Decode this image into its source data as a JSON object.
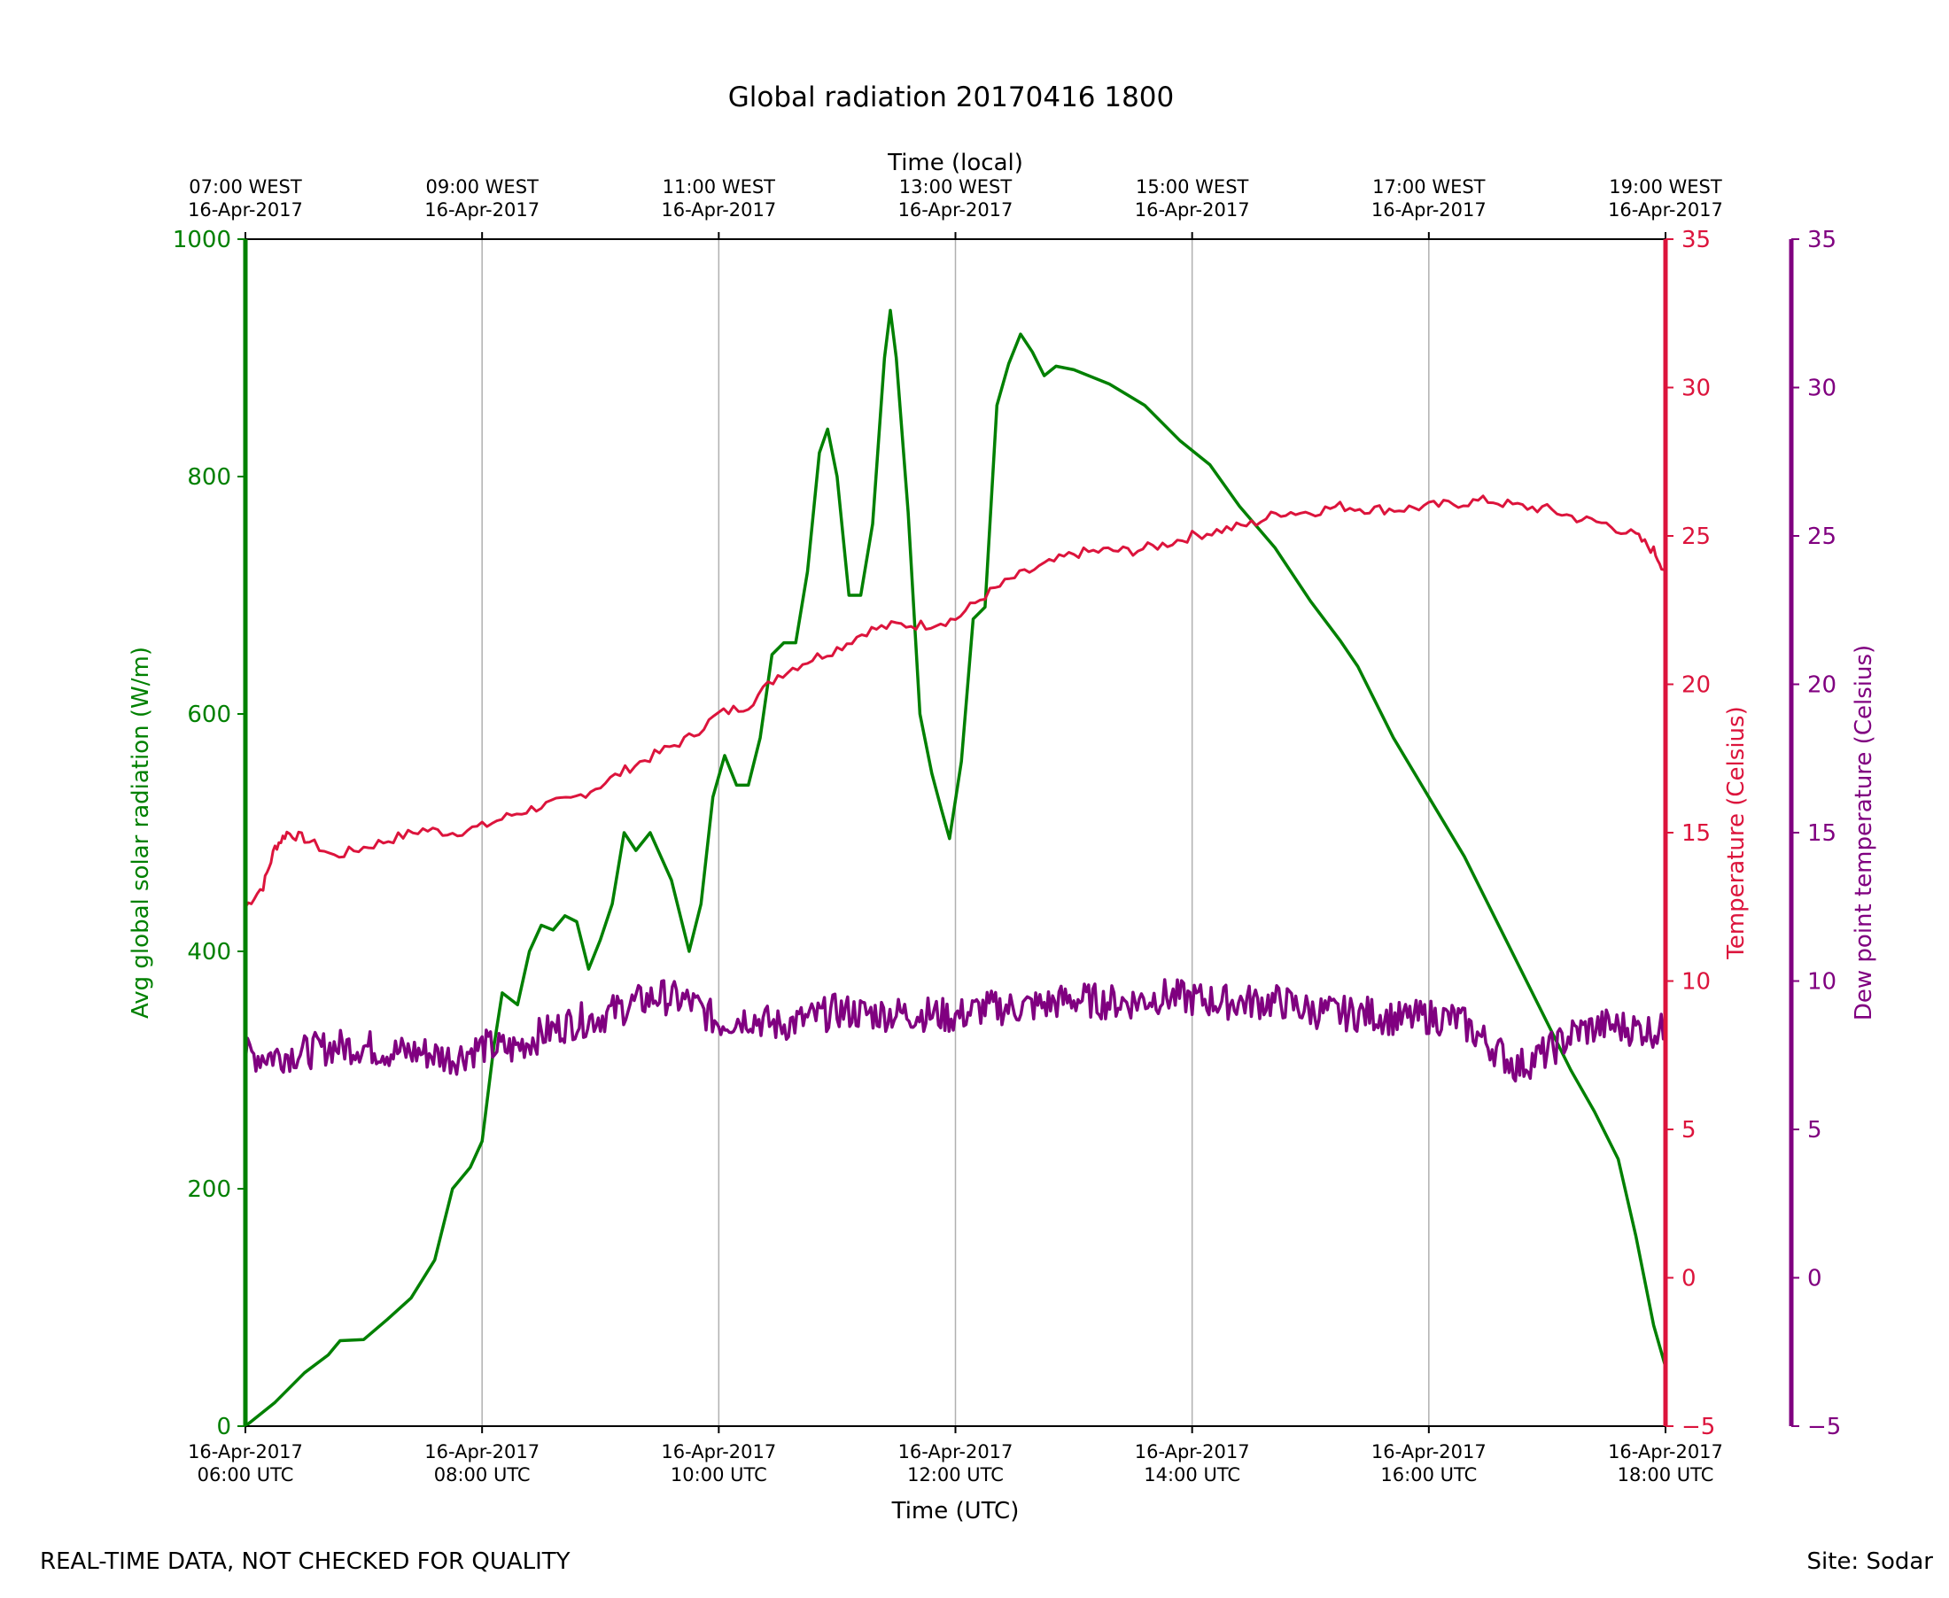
{
  "chart_data": {
    "type": "line",
    "title": "Global radiation 20170416 1800",
    "xlabel": "Time (UTC)",
    "top_xlabel": "Time (local)",
    "ylabel_left": "Avg global solar radiation (W/m)",
    "ylabel_right": "Temperature (Celsius)",
    "ylabel_right2": "Dew point temperature (Celsius)",
    "x_range_hours": [
      6,
      18
    ],
    "grid": "vertical only",
    "colors": {
      "radiation": "#008000",
      "temperature": "#dc143c",
      "dewpoint": "#800080"
    },
    "x_ticks_hours": [
      6,
      8,
      10,
      12,
      14,
      16,
      18
    ],
    "x_ticks_bottom": [
      [
        "16-Apr-2017",
        "06:00 UTC"
      ],
      [
        "16-Apr-2017",
        "08:00 UTC"
      ],
      [
        "16-Apr-2017",
        "10:00 UTC"
      ],
      [
        "16-Apr-2017",
        "12:00 UTC"
      ],
      [
        "16-Apr-2017",
        "14:00 UTC"
      ],
      [
        "16-Apr-2017",
        "16:00 UTC"
      ],
      [
        "16-Apr-2017",
        "18:00 UTC"
      ]
    ],
    "x_ticks_top": [
      [
        "07:00 WEST",
        "16-Apr-2017"
      ],
      [
        "09:00 WEST",
        "16-Apr-2017"
      ],
      [
        "11:00 WEST",
        "16-Apr-2017"
      ],
      [
        "13:00 WEST",
        "16-Apr-2017"
      ],
      [
        "15:00 WEST",
        "16-Apr-2017"
      ],
      [
        "17:00 WEST",
        "16-Apr-2017"
      ],
      [
        "19:00 WEST",
        "16-Apr-2017"
      ]
    ],
    "ylim_left": [
      0,
      1000
    ],
    "yticks_left": [
      0,
      200,
      400,
      600,
      800,
      1000
    ],
    "ylim_right": [
      -5,
      35
    ],
    "yticks_right": [
      -5,
      0,
      5,
      10,
      15,
      20,
      25,
      30,
      35
    ],
    "yticks_right_labels": [
      "−5",
      "0",
      "5",
      "10",
      "15",
      "20",
      "25",
      "30",
      "35"
    ],
    "ylim_right2": [
      -5,
      35
    ],
    "series": [
      {
        "key": "radiation",
        "axis": "left",
        "points": [
          [
            6.0,
            0
          ],
          [
            6.25,
            20
          ],
          [
            6.5,
            45
          ],
          [
            6.7,
            60
          ],
          [
            6.8,
            72
          ],
          [
            7.0,
            73
          ],
          [
            7.2,
            90
          ],
          [
            7.4,
            108
          ],
          [
            7.6,
            140
          ],
          [
            7.75,
            200
          ],
          [
            7.9,
            218
          ],
          [
            8.0,
            240
          ],
          [
            8.1,
            320
          ],
          [
            8.17,
            365
          ],
          [
            8.3,
            355
          ],
          [
            8.4,
            400
          ],
          [
            8.5,
            422
          ],
          [
            8.6,
            418
          ],
          [
            8.7,
            430
          ],
          [
            8.8,
            425
          ],
          [
            8.9,
            385
          ],
          [
            9.0,
            410
          ],
          [
            9.1,
            440
          ],
          [
            9.2,
            500
          ],
          [
            9.3,
            485
          ],
          [
            9.42,
            500
          ],
          [
            9.6,
            460
          ],
          [
            9.75,
            400
          ],
          [
            9.85,
            440
          ],
          [
            9.95,
            530
          ],
          [
            10.05,
            565
          ],
          [
            10.15,
            540
          ],
          [
            10.25,
            540
          ],
          [
            10.35,
            580
          ],
          [
            10.45,
            650
          ],
          [
            10.55,
            660
          ],
          [
            10.65,
            660
          ],
          [
            10.75,
            720
          ],
          [
            10.85,
            820
          ],
          [
            10.92,
            840
          ],
          [
            11.0,
            800
          ],
          [
            11.1,
            700
          ],
          [
            11.2,
            700
          ],
          [
            11.3,
            760
          ],
          [
            11.4,
            900
          ],
          [
            11.45,
            940
          ],
          [
            11.5,
            900
          ],
          [
            11.6,
            770
          ],
          [
            11.7,
            600
          ],
          [
            11.8,
            550
          ],
          [
            11.88,
            520
          ],
          [
            11.95,
            495
          ],
          [
            12.05,
            560
          ],
          [
            12.15,
            680
          ],
          [
            12.25,
            690
          ],
          [
            12.35,
            860
          ],
          [
            12.45,
            895
          ],
          [
            12.55,
            920
          ],
          [
            12.65,
            905
          ],
          [
            12.75,
            885
          ],
          [
            12.85,
            893
          ],
          [
            13.0,
            890
          ],
          [
            13.3,
            878
          ],
          [
            13.6,
            860
          ],
          [
            13.9,
            830
          ],
          [
            14.15,
            810
          ],
          [
            14.4,
            775
          ],
          [
            14.7,
            740
          ],
          [
            15.0,
            695
          ],
          [
            15.25,
            662
          ],
          [
            15.4,
            640
          ],
          [
            15.7,
            580
          ],
          [
            16.0,
            530
          ],
          [
            16.3,
            480
          ],
          [
            16.6,
            420
          ],
          [
            16.9,
            360
          ],
          [
            17.2,
            300
          ],
          [
            17.4,
            265
          ],
          [
            17.6,
            225
          ],
          [
            17.75,
            160
          ],
          [
            17.9,
            85
          ],
          [
            18.0,
            50
          ]
        ]
      },
      {
        "key": "temperature",
        "axis": "right",
        "points": [
          [
            6.0,
            12.5
          ],
          [
            6.15,
            13.2
          ],
          [
            6.25,
            14.5
          ],
          [
            6.35,
            15.0
          ],
          [
            6.5,
            14.8
          ],
          [
            6.75,
            14.2
          ],
          [
            7.0,
            14.5
          ],
          [
            7.25,
            14.8
          ],
          [
            7.5,
            15.1
          ],
          [
            7.75,
            15.0
          ],
          [
            8.0,
            15.2
          ],
          [
            8.25,
            15.6
          ],
          [
            8.5,
            15.9
          ],
          [
            8.75,
            16.1
          ],
          [
            9.0,
            16.6
          ],
          [
            9.25,
            17.2
          ],
          [
            9.5,
            17.7
          ],
          [
            9.75,
            18.2
          ],
          [
            10.0,
            19.0
          ],
          [
            10.25,
            19.3
          ],
          [
            10.5,
            20.3
          ],
          [
            10.75,
            20.8
          ],
          [
            11.0,
            21.2
          ],
          [
            11.25,
            21.8
          ],
          [
            11.5,
            22.0
          ],
          [
            11.75,
            22.0
          ],
          [
            12.0,
            22.2
          ],
          [
            12.25,
            23.0
          ],
          [
            12.5,
            23.6
          ],
          [
            12.75,
            24.0
          ],
          [
            13.0,
            24.4
          ],
          [
            13.25,
            24.5
          ],
          [
            13.5,
            24.5
          ],
          [
            13.75,
            24.7
          ],
          [
            14.0,
            25.0
          ],
          [
            14.25,
            25.2
          ],
          [
            14.5,
            25.4
          ],
          [
            14.75,
            25.8
          ],
          [
            15.0,
            25.8
          ],
          [
            15.25,
            26.0
          ],
          [
            15.5,
            25.9
          ],
          [
            15.75,
            25.9
          ],
          [
            16.0,
            26.0
          ],
          [
            16.25,
            26.1
          ],
          [
            16.5,
            26.2
          ],
          [
            16.75,
            26.0
          ],
          [
            17.0,
            25.9
          ],
          [
            17.25,
            25.6
          ],
          [
            17.5,
            25.4
          ],
          [
            17.75,
            25.0
          ],
          [
            17.9,
            24.5
          ],
          [
            18.0,
            23.8
          ]
        ]
      },
      {
        "key": "dewpoint",
        "axis": "right2",
        "points": [
          [
            6.0,
            7.5
          ],
          [
            6.25,
            7.5
          ],
          [
            6.5,
            7.6
          ],
          [
            6.75,
            7.8
          ],
          [
            7.0,
            7.8
          ],
          [
            7.25,
            7.6
          ],
          [
            7.5,
            7.6
          ],
          [
            7.75,
            7.4
          ],
          [
            8.0,
            7.8
          ],
          [
            8.25,
            7.7
          ],
          [
            8.5,
            8.2
          ],
          [
            8.75,
            8.6
          ],
          [
            9.0,
            8.8
          ],
          [
            9.25,
            9.2
          ],
          [
            9.5,
            9.5
          ],
          [
            9.75,
            9.3
          ],
          [
            10.0,
            8.6
          ],
          [
            10.25,
            8.8
          ],
          [
            10.5,
            8.5
          ],
          [
            10.75,
            8.7
          ],
          [
            11.0,
            9.0
          ],
          [
            11.25,
            8.9
          ],
          [
            11.5,
            8.9
          ],
          [
            11.75,
            8.9
          ],
          [
            12.0,
            8.8
          ],
          [
            12.25,
            9.1
          ],
          [
            12.5,
            9.1
          ],
          [
            12.75,
            9.2
          ],
          [
            13.0,
            9.4
          ],
          [
            13.25,
            9.3
          ],
          [
            13.5,
            9.3
          ],
          [
            13.75,
            9.5
          ],
          [
            14.0,
            9.4
          ],
          [
            14.25,
            9.3
          ],
          [
            14.5,
            9.3
          ],
          [
            14.75,
            9.3
          ],
          [
            15.0,
            9.0
          ],
          [
            15.25,
            8.9
          ],
          [
            15.5,
            8.9
          ],
          [
            15.75,
            8.7
          ],
          [
            16.0,
            8.8
          ],
          [
            16.25,
            8.7
          ],
          [
            16.5,
            7.9
          ],
          [
            16.75,
            7.1
          ],
          [
            17.0,
            7.6
          ],
          [
            17.25,
            8.3
          ],
          [
            17.5,
            8.5
          ],
          [
            17.75,
            8.4
          ],
          [
            18.0,
            8.3
          ]
        ]
      }
    ]
  },
  "footer": {
    "left": "REAL-TIME DATA, NOT CHECKED FOR QUALITY",
    "right": "Site: Sodar"
  }
}
